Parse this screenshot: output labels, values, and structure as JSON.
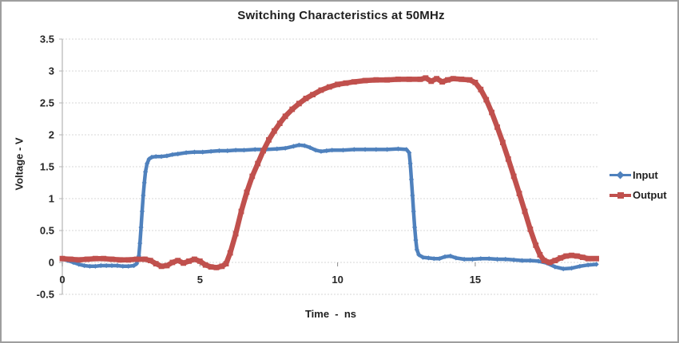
{
  "chart_data": {
    "type": "line",
    "title": "Switching Characteristics at 50MHz",
    "xlabel": "Time  -  ns",
    "ylabel": "Voltage - V",
    "xlim": [
      0,
      19.5
    ],
    "ylim": [
      -0.5,
      3.5
    ],
    "xticks": [
      0,
      5,
      10,
      15
    ],
    "xtick_labels": [
      "0",
      "5",
      "10",
      "15"
    ],
    "yticks": [
      3.5,
      3,
      2.5,
      2,
      1.5,
      1,
      0.5,
      0,
      -0.5
    ],
    "ytick_labels": [
      "3.5",
      "3",
      "2.5",
      "2",
      "1.5",
      "1",
      "0.5",
      "0",
      "-0.5"
    ],
    "grid": true,
    "gridline_color": "#d7d7d7",
    "axis_color": "#b3b3b3",
    "legend_position": "right",
    "series": [
      {
        "name": "Input",
        "color": "#4F81BD",
        "marker": "diamond",
        "line_width": 4.5,
        "points": [
          [
            0,
            0.05
          ],
          [
            0.2,
            0.03
          ],
          [
            0.4,
            0
          ],
          [
            0.6,
            -0.03
          ],
          [
            0.8,
            -0.05
          ],
          [
            1,
            -0.06
          ],
          [
            1.2,
            -0.06
          ],
          [
            1.4,
            -0.05
          ],
          [
            1.6,
            -0.05
          ],
          [
            1.8,
            -0.05
          ],
          [
            2,
            -0.05
          ],
          [
            2.2,
            -0.06
          ],
          [
            2.4,
            -0.06
          ],
          [
            2.6,
            -0.05
          ],
          [
            2.7,
            -0.02
          ],
          [
            2.78,
            0.1
          ],
          [
            2.82,
            0.3
          ],
          [
            2.86,
            0.55
          ],
          [
            2.9,
            0.8
          ],
          [
            2.94,
            1.05
          ],
          [
            2.98,
            1.25
          ],
          [
            3.02,
            1.42
          ],
          [
            3.08,
            1.55
          ],
          [
            3.15,
            1.62
          ],
          [
            3.25,
            1.65
          ],
          [
            3.4,
            1.66
          ],
          [
            3.6,
            1.66
          ],
          [
            3.8,
            1.67
          ],
          [
            4,
            1.69
          ],
          [
            4.2,
            1.7
          ],
          [
            4.5,
            1.72
          ],
          [
            4.8,
            1.73
          ],
          [
            5.1,
            1.73
          ],
          [
            5.4,
            1.74
          ],
          [
            5.7,
            1.75
          ],
          [
            6,
            1.75
          ],
          [
            6.3,
            1.76
          ],
          [
            6.6,
            1.76
          ],
          [
            7,
            1.77
          ],
          [
            7.4,
            1.77
          ],
          [
            7.8,
            1.78
          ],
          [
            8.1,
            1.79
          ],
          [
            8.4,
            1.82
          ],
          [
            8.6,
            1.84
          ],
          [
            8.8,
            1.83
          ],
          [
            9,
            1.8
          ],
          [
            9.2,
            1.76
          ],
          [
            9.4,
            1.74
          ],
          [
            9.6,
            1.75
          ],
          [
            9.8,
            1.76
          ],
          [
            10.2,
            1.76
          ],
          [
            10.6,
            1.77
          ],
          [
            11,
            1.77
          ],
          [
            11.4,
            1.77
          ],
          [
            11.8,
            1.77
          ],
          [
            12.2,
            1.78
          ],
          [
            12.5,
            1.77
          ],
          [
            12.6,
            1.72
          ],
          [
            12.64,
            1.55
          ],
          [
            12.68,
            1.3
          ],
          [
            12.72,
            1.05
          ],
          [
            12.76,
            0.8
          ],
          [
            12.8,
            0.55
          ],
          [
            12.84,
            0.35
          ],
          [
            12.88,
            0.2
          ],
          [
            12.95,
            0.12
          ],
          [
            13.1,
            0.08
          ],
          [
            13.3,
            0.07
          ],
          [
            13.5,
            0.06
          ],
          [
            13.7,
            0.06
          ],
          [
            13.9,
            0.09
          ],
          [
            14.1,
            0.1
          ],
          [
            14.3,
            0.07
          ],
          [
            14.6,
            0.05
          ],
          [
            14.9,
            0.05
          ],
          [
            15.2,
            0.06
          ],
          [
            15.5,
            0.06
          ],
          [
            15.8,
            0.05
          ],
          [
            16.1,
            0.05
          ],
          [
            16.4,
            0.04
          ],
          [
            16.7,
            0.03
          ],
          [
            17,
            0.03
          ],
          [
            17.3,
            0.02
          ],
          [
            17.6,
            -0.01
          ],
          [
            17.9,
            -0.07
          ],
          [
            18.2,
            -0.1
          ],
          [
            18.5,
            -0.09
          ],
          [
            18.8,
            -0.06
          ],
          [
            19.1,
            -0.04
          ],
          [
            19.4,
            -0.03
          ]
        ]
      },
      {
        "name": "Output",
        "color": "#C0504D",
        "marker": "square",
        "line_width": 6.5,
        "points": [
          [
            0,
            0.06
          ],
          [
            0.3,
            0.05
          ],
          [
            0.6,
            0.04
          ],
          [
            0.9,
            0.05
          ],
          [
            1.2,
            0.06
          ],
          [
            1.5,
            0.06
          ],
          [
            1.8,
            0.05
          ],
          [
            2.1,
            0.04
          ],
          [
            2.4,
            0.04
          ],
          [
            2.7,
            0.05
          ],
          [
            3,
            0.05
          ],
          [
            3.2,
            0.03
          ],
          [
            3.4,
            -0.02
          ],
          [
            3.6,
            -0.06
          ],
          [
            3.8,
            -0.05
          ],
          [
            4,
            0
          ],
          [
            4.2,
            0.03
          ],
          [
            4.4,
            -0.01
          ],
          [
            4.6,
            0.02
          ],
          [
            4.8,
            0.05
          ],
          [
            5,
            0.02
          ],
          [
            5.2,
            -0.04
          ],
          [
            5.4,
            -0.07
          ],
          [
            5.6,
            -0.08
          ],
          [
            5.8,
            -0.06
          ],
          [
            5.95,
            -0.02
          ],
          [
            6.1,
            0.15
          ],
          [
            6.3,
            0.45
          ],
          [
            6.5,
            0.8
          ],
          [
            6.7,
            1.1
          ],
          [
            6.9,
            1.35
          ],
          [
            7.1,
            1.55
          ],
          [
            7.3,
            1.75
          ],
          [
            7.5,
            1.92
          ],
          [
            7.7,
            2.06
          ],
          [
            7.9,
            2.18
          ],
          [
            8.1,
            2.29
          ],
          [
            8.35,
            2.4
          ],
          [
            8.6,
            2.49
          ],
          [
            8.85,
            2.57
          ],
          [
            9.1,
            2.63
          ],
          [
            9.4,
            2.7
          ],
          [
            9.7,
            2.75
          ],
          [
            10,
            2.79
          ],
          [
            10.3,
            2.81
          ],
          [
            10.6,
            2.83
          ],
          [
            11,
            2.85
          ],
          [
            11.4,
            2.86
          ],
          [
            11.8,
            2.86
          ],
          [
            12.2,
            2.87
          ],
          [
            12.6,
            2.87
          ],
          [
            13,
            2.87
          ],
          [
            13.2,
            2.89
          ],
          [
            13.4,
            2.84
          ],
          [
            13.6,
            2.88
          ],
          [
            13.8,
            2.83
          ],
          [
            14,
            2.86
          ],
          [
            14.2,
            2.88
          ],
          [
            14.5,
            2.87
          ],
          [
            14.8,
            2.86
          ],
          [
            15,
            2.82
          ],
          [
            15.2,
            2.71
          ],
          [
            15.4,
            2.55
          ],
          [
            15.6,
            2.35
          ],
          [
            15.8,
            2.12
          ],
          [
            16,
            1.88
          ],
          [
            16.2,
            1.62
          ],
          [
            16.4,
            1.35
          ],
          [
            16.6,
            1.08
          ],
          [
            16.8,
            0.8
          ],
          [
            17,
            0.52
          ],
          [
            17.2,
            0.27
          ],
          [
            17.35,
            0.12
          ],
          [
            17.5,
            0.03
          ],
          [
            17.7,
            0
          ],
          [
            17.9,
            0.03
          ],
          [
            18.1,
            0.07
          ],
          [
            18.3,
            0.1
          ],
          [
            18.5,
            0.11
          ],
          [
            18.7,
            0.1
          ],
          [
            18.9,
            0.08
          ],
          [
            19.1,
            0.06
          ],
          [
            19.3,
            0.06
          ],
          [
            19.4,
            0.06
          ]
        ]
      }
    ]
  }
}
